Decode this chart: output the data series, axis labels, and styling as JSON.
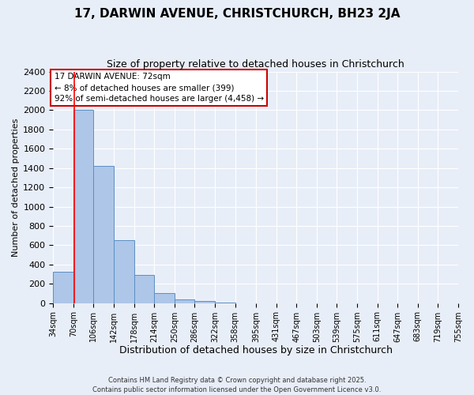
{
  "title": "17, DARWIN AVENUE, CHRISTCHURCH, BH23 2JA",
  "subtitle": "Size of property relative to detached houses in Christchurch",
  "xlabel": "Distribution of detached houses by size in Christchurch",
  "ylabel": "Number of detached properties",
  "bin_edges": [
    34,
    70,
    106,
    142,
    178,
    214,
    250,
    286,
    322,
    358,
    395,
    431,
    467,
    503,
    539,
    575,
    611,
    647,
    683,
    719,
    755
  ],
  "bar_heights": [
    325,
    2000,
    1420,
    650,
    290,
    100,
    35,
    20,
    5,
    0,
    0,
    0,
    0,
    0,
    0,
    0,
    0,
    0,
    0,
    0
  ],
  "bar_color": "#aec6e8",
  "bar_edge_color": "#5a8fc2",
  "red_line_x": 72,
  "annotation_text": "17 DARWIN AVENUE: 72sqm\n← 8% of detached houses are smaller (399)\n92% of semi-detached houses are larger (4,458) →",
  "annotation_box_color": "#ffffff",
  "annotation_box_edge_color": "#cc0000",
  "ylim": [
    0,
    2400
  ],
  "yticks": [
    0,
    200,
    400,
    600,
    800,
    1000,
    1200,
    1400,
    1600,
    1800,
    2000,
    2200,
    2400
  ],
  "background_color": "#e8eef8",
  "footer_text": "Contains HM Land Registry data © Crown copyright and database right 2025.\nContains public sector information licensed under the Open Government Licence v3.0.",
  "tick_label_fontsize": 7,
  "title_fontsize": 11,
  "subtitle_fontsize": 9,
  "xlabel_fontsize": 9,
  "ylabel_fontsize": 8,
  "annotation_fontsize": 7.5
}
